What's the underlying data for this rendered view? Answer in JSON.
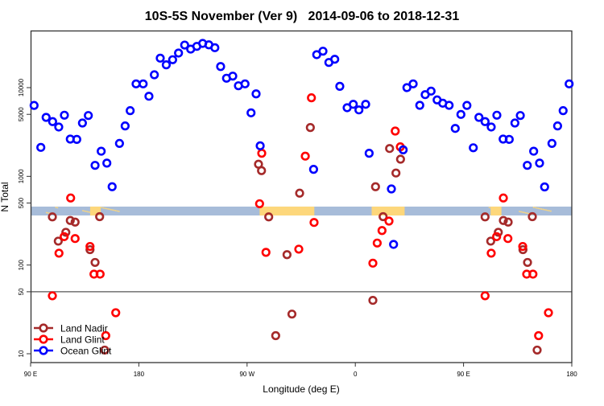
{
  "chart_data": {
    "type": "scatter",
    "title": "10S-5S November (Ver 9)   2014-09-06 to 2018-12-31",
    "xlabel": "Longitude (deg E)",
    "ylabel": "N Total",
    "x_note": "x values in unwrapped degrees east (90 to 540)",
    "xlim": [
      90,
      540
    ],
    "ylim": [
      8,
      44000
    ],
    "yscale": "log",
    "x_ticks": [
      {
        "value": 90,
        "label": "90 E"
      },
      {
        "value": 180,
        "label": "180"
      },
      {
        "value": 270,
        "label": "90 W"
      },
      {
        "value": 360,
        "label": "0"
      },
      {
        "value": 450,
        "label": "90 E"
      },
      {
        "value": 540,
        "label": "180"
      }
    ],
    "y_ticks": [
      {
        "value": 10,
        "label": "10"
      },
      {
        "value": 50,
        "label": "50"
      },
      {
        "value": 100,
        "label": "100"
      },
      {
        "value": 500,
        "label": "500"
      },
      {
        "value": 1000,
        "label": "1000"
      },
      {
        "value": 5000,
        "label": "5000"
      },
      {
        "value": 10000,
        "label": "10000"
      }
    ],
    "reference_line": 50,
    "land_band": {
      "ymin": 362,
      "ymax": 456,
      "ocean_color": "#a7bcd9",
      "land_color": "#fdd77b",
      "land_ranges": [
        [
          280.4,
          325.9
        ],
        [
          373.6,
          401.0
        ],
        [
          139.5,
          148.3
        ],
        [
          472.5,
          481.5
        ]
      ],
      "speckle_ranges": [
        [
          102.7,
          113
        ],
        [
          133,
          163
        ],
        [
          467,
          476
        ],
        [
          496,
          523
        ]
      ]
    },
    "legend": {
      "position": "bottom-left"
    },
    "series": [
      {
        "name": "Land Nadir",
        "color": "#a52a2a",
        "points": [
          [
            108.1,
            349
          ],
          [
            113,
            186
          ],
          [
            119.3,
            234
          ],
          [
            123,
            318
          ],
          [
            127,
            305
          ],
          [
            139.4,
            149
          ],
          [
            143.6,
            107
          ],
          [
            147.4,
            351
          ],
          [
            151.6,
            11
          ],
          [
            279.5,
            1370
          ],
          [
            282,
            1160
          ],
          [
            288,
            349
          ],
          [
            293.8,
            16
          ],
          [
            303.2,
            131
          ],
          [
            307.3,
            28
          ],
          [
            313.7,
            646
          ],
          [
            322.6,
            3550
          ],
          [
            374.6,
            40
          ],
          [
            376.8,
            764
          ],
          [
            383.1,
            351
          ],
          [
            388.5,
            2060
          ],
          [
            393.8,
            1090
          ],
          [
            397.6,
            1560
          ],
          [
            467.9,
            349
          ],
          [
            472.6,
            186
          ],
          [
            478.9,
            234
          ],
          [
            483.1,
            318
          ],
          [
            487.1,
            305
          ],
          [
            499.4,
            149
          ],
          [
            503.2,
            107
          ],
          [
            507.2,
            351
          ],
          [
            511.2,
            11
          ]
        ]
      },
      {
        "name": "Land Glint",
        "color": "#ff0000",
        "points": [
          [
            108.1,
            45
          ],
          [
            113.6,
            136
          ],
          [
            117.9,
            209
          ],
          [
            123.3,
            570
          ],
          [
            127,
            199
          ],
          [
            139.4,
            162
          ],
          [
            142.7,
            79
          ],
          [
            147.8,
            79
          ],
          [
            152.5,
            16
          ],
          [
            160.8,
            29
          ],
          [
            280.4,
            491
          ],
          [
            282.2,
            1820
          ],
          [
            285.7,
            139
          ],
          [
            313,
            151
          ],
          [
            318.4,
            1690
          ],
          [
            323.5,
            7680
          ],
          [
            325.7,
            302
          ],
          [
            374.6,
            105
          ],
          [
            378.2,
            177
          ],
          [
            382.2,
            245
          ],
          [
            388,
            313
          ],
          [
            393.2,
            3240
          ],
          [
            397.4,
            2150
          ],
          [
            467.9,
            45
          ],
          [
            473,
            136
          ],
          [
            477.5,
            209
          ],
          [
            483.1,
            570
          ],
          [
            486.9,
            199
          ],
          [
            499.2,
            162
          ],
          [
            502.5,
            79
          ],
          [
            507.7,
            79
          ],
          [
            512.4,
            16
          ],
          [
            520.6,
            29
          ]
        ]
      },
      {
        "name": "Ocean Glint",
        "color": "#0000ff",
        "points": [
          [
            92.9,
            6300
          ],
          [
            98.5,
            2120
          ],
          [
            102.9,
            4620
          ],
          [
            108.3,
            4140
          ],
          [
            113.4,
            3600
          ],
          [
            118.1,
            4890
          ],
          [
            123,
            2630
          ],
          [
            128.4,
            2610
          ],
          [
            133.1,
            3990
          ],
          [
            138,
            4850
          ],
          [
            143.6,
            1330
          ],
          [
            148.7,
            1920
          ],
          [
            153.4,
            1410
          ],
          [
            157.8,
            764
          ],
          [
            163.9,
            2350
          ],
          [
            168.6,
            3700
          ],
          [
            172.8,
            5500
          ],
          [
            177.7,
            11030
          ],
          [
            183.6,
            11030
          ],
          [
            188.4,
            8000
          ],
          [
            192.9,
            13960
          ],
          [
            197.8,
            21500
          ],
          [
            202.8,
            18070
          ],
          [
            208.1,
            20640
          ],
          [
            213,
            24550
          ],
          [
            218.1,
            30200
          ],
          [
            223.1,
            27200
          ],
          [
            228.2,
            29200
          ],
          [
            233.1,
            31500
          ],
          [
            238.2,
            30400
          ],
          [
            243.2,
            28200
          ],
          [
            248,
            17300
          ],
          [
            252.9,
            12770
          ],
          [
            258.1,
            13490
          ],
          [
            262.8,
            10500
          ],
          [
            268.3,
            11030
          ],
          [
            273.3,
            5200
          ],
          [
            277.5,
            8510
          ],
          [
            280.9,
            2210
          ],
          [
            325.3,
            1200
          ],
          [
            327.9,
            23550
          ],
          [
            333.1,
            25760
          ],
          [
            338,
            19230
          ],
          [
            342.9,
            20900
          ],
          [
            347.1,
            10350
          ],
          [
            353.2,
            5940
          ],
          [
            358.3,
            6490
          ],
          [
            363,
            5610
          ],
          [
            368.6,
            6490
          ],
          [
            371.5,
            1820
          ],
          [
            390,
            721
          ],
          [
            391.8,
            171
          ],
          [
            399.8,
            1990
          ],
          [
            402.9,
            10000
          ],
          [
            408.1,
            11030
          ],
          [
            413.6,
            6320
          ],
          [
            418.1,
            8340
          ],
          [
            423,
            9140
          ],
          [
            428,
            7270
          ],
          [
            432.7,
            6680
          ],
          [
            438,
            6320
          ],
          [
            443.1,
            3470
          ],
          [
            447.8,
            4990
          ],
          [
            452.8,
            6300
          ],
          [
            458.1,
            2100
          ],
          [
            462.8,
            4620
          ],
          [
            467.9,
            4140
          ],
          [
            473,
            3600
          ],
          [
            477.7,
            4890
          ],
          [
            482.9,
            2630
          ],
          [
            488,
            2610
          ],
          [
            492.7,
            3990
          ],
          [
            497.2,
            4850
          ],
          [
            503,
            1330
          ],
          [
            508.3,
            1920
          ],
          [
            513.2,
            1410
          ],
          [
            517.4,
            760
          ],
          [
            523.5,
            2350
          ],
          [
            528.2,
            3700
          ],
          [
            532.8,
            5500
          ],
          [
            537.8,
            11030
          ]
        ]
      }
    ]
  }
}
